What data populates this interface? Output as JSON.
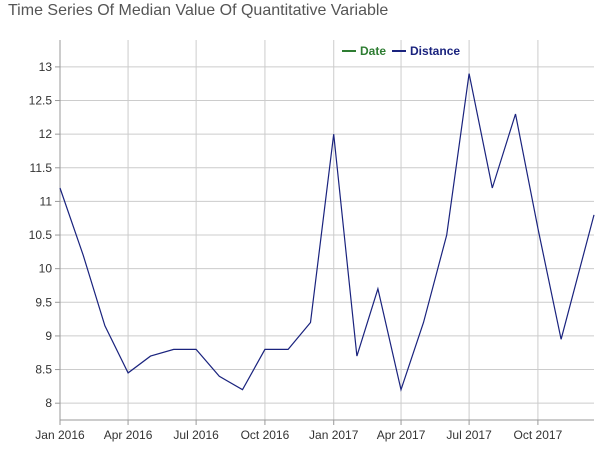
{
  "chart_data": {
    "type": "line",
    "title": "Time Series Of Median Value Of Quantitative Variable",
    "xlabel": "",
    "ylabel": "",
    "x_tick_labels": [
      "Jan 2016",
      "Apr 2016",
      "Jul 2016",
      "Oct 2016",
      "Jan 2017",
      "Apr 2017",
      "Jul 2017",
      "Oct 2017"
    ],
    "y_tick_labels": [
      "8",
      "8.5",
      "9",
      "9.5",
      "10",
      "10.5",
      "11",
      "11.5",
      "12",
      "12.5",
      "13"
    ],
    "ylim": [
      7.75,
      13.4
    ],
    "xlim": [
      "2016-01-01",
      "2017-12-15"
    ],
    "grid": true,
    "legend_position": "top-center",
    "legend": [
      {
        "name": "Date",
        "color": "#2e7d32"
      },
      {
        "name": "Distance",
        "color": "#1a237e"
      }
    ],
    "series": [
      {
        "name": "Distance",
        "color": "#1a237e",
        "points": [
          {
            "x": "2016-01-01",
            "y": 11.2
          },
          {
            "x": "2016-02-01",
            "y": 10.2
          },
          {
            "x": "2016-03-01",
            "y": 9.15
          },
          {
            "x": "2016-04-01",
            "y": 8.45
          },
          {
            "x": "2016-05-01",
            "y": 8.7
          },
          {
            "x": "2016-06-01",
            "y": 8.8
          },
          {
            "x": "2016-07-01",
            "y": 8.8
          },
          {
            "x": "2016-08-01",
            "y": 8.4
          },
          {
            "x": "2016-09-01",
            "y": 8.2
          },
          {
            "x": "2016-10-01",
            "y": 8.8
          },
          {
            "x": "2016-11-01",
            "y": 8.8
          },
          {
            "x": "2016-12-01",
            "y": 9.2
          },
          {
            "x": "2017-01-01",
            "y": 12.0
          },
          {
            "x": "2017-02-01",
            "y": 8.7
          },
          {
            "x": "2017-03-01",
            "y": 9.7
          },
          {
            "x": "2017-04-01",
            "y": 8.2
          },
          {
            "x": "2017-05-01",
            "y": 9.2
          },
          {
            "x": "2017-06-01",
            "y": 10.5
          },
          {
            "x": "2017-07-01",
            "y": 12.9
          },
          {
            "x": "2017-08-01",
            "y": 11.2
          },
          {
            "x": "2017-09-01",
            "y": 12.3
          },
          {
            "x": "2017-10-01",
            "y": 10.6
          },
          {
            "x": "2017-11-01",
            "y": 8.95
          },
          {
            "x": "2017-12-15",
            "y": 10.8
          }
        ]
      }
    ]
  }
}
